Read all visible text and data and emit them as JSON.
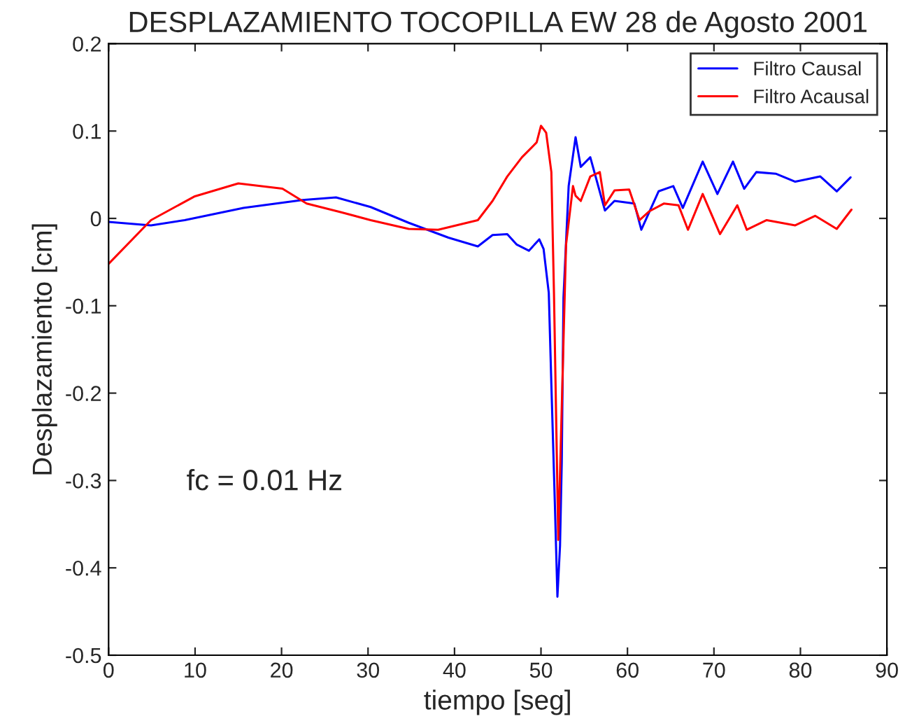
{
  "chart_data": {
    "type": "line",
    "title": "DESPLAZAMIENTO TOCOPILLA EW 28 de Agosto 2001",
    "xlabel": "tiempo [seg]",
    "ylabel": "Desplazamiento [cm]",
    "annotations": [
      "fc = 0.01 Hz"
    ],
    "xlim": [
      0,
      90
    ],
    "ylim": [
      -0.5,
      0.2
    ],
    "xticks": [
      0,
      10,
      20,
      30,
      40,
      50,
      60,
      70,
      80,
      90
    ],
    "yticks": [
      -0.5,
      -0.4,
      -0.3,
      -0.2,
      -0.1,
      0,
      0.1,
      0.2
    ],
    "grid": false,
    "legend": "top right",
    "line_style": "solid",
    "marker": "none",
    "series": [
      {
        "name": "Filtro Causal",
        "color": "#0000ff",
        "x": [
          0,
          4.9,
          8.8,
          15.6,
          22.4,
          26.3,
          30.3,
          34.7,
          39.3,
          42.7,
          44.4,
          46.1,
          47.2,
          48.6,
          49.8,
          50.3,
          50.9,
          51.2,
          51.6,
          51.9,
          52.2,
          52.4,
          52.6,
          53.2,
          54.0,
          54.6,
          55.7,
          57.4,
          58.5,
          60.8,
          61.6,
          63.6,
          65.3,
          66.4,
          68.7,
          70.4,
          72.2,
          73.5,
          74.9,
          77.2,
          79.4,
          82.3,
          84.2,
          85.8
        ],
        "values": [
          -0.004,
          -0.008,
          -0.002,
          0.012,
          0.021,
          0.024,
          0.013,
          -0.005,
          -0.022,
          -0.032,
          -0.019,
          -0.018,
          -0.03,
          -0.037,
          -0.024,
          -0.035,
          -0.085,
          -0.19,
          -0.325,
          -0.433,
          -0.375,
          -0.28,
          -0.091,
          0.037,
          0.093,
          0.059,
          0.07,
          0.009,
          0.02,
          0.017,
          -0.013,
          0.031,
          0.037,
          0.012,
          0.065,
          0.028,
          0.065,
          0.034,
          0.053,
          0.051,
          0.042,
          0.048,
          0.031,
          0.047
        ]
      },
      {
        "name": "Filtro Acausal",
        "color": "#ff0000",
        "x": [
          0,
          4.9,
          9.9,
          15,
          20.1,
          22.9,
          26.9,
          30.3,
          34.7,
          38.1,
          42.7,
          44.4,
          46.1,
          47.8,
          49.5,
          50.0,
          50.6,
          51.2,
          51.5,
          52.0,
          52.6,
          52.9,
          53.7,
          54.0,
          54.6,
          55.7,
          56.8,
          57.4,
          58.5,
          60.2,
          61.4,
          62.5,
          64.2,
          65.9,
          67,
          68.7,
          70.7,
          72.7,
          73.8,
          76.1,
          79.4,
          81.7,
          84.2,
          85.9
        ],
        "values": [
          -0.052,
          -0.002,
          0.025,
          0.04,
          0.034,
          0.017,
          0.007,
          -0.002,
          -0.012,
          -0.013,
          -0.002,
          0.02,
          0.048,
          0.07,
          0.087,
          0.106,
          0.098,
          0.053,
          -0.085,
          -0.368,
          -0.141,
          -0.03,
          0.037,
          0.026,
          0.02,
          0.048,
          0.053,
          0.015,
          0.032,
          0.033,
          -0.002,
          0.008,
          0.017,
          0.015,
          -0.013,
          0.028,
          -0.018,
          0.015,
          -0.013,
          -0.002,
          -0.008,
          0.003,
          -0.012,
          0.01
        ]
      }
    ]
  }
}
